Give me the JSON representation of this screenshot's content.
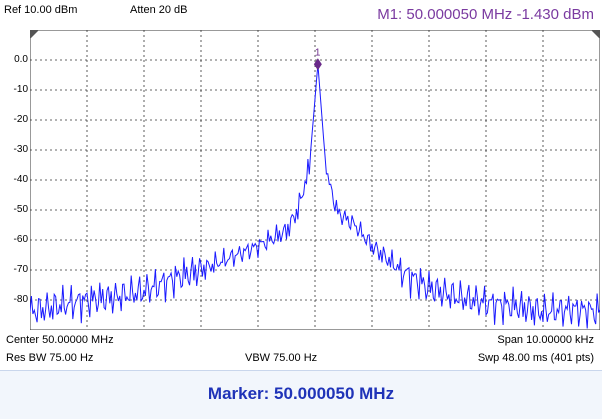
{
  "header": {
    "ref_level": "Ref 10.00 dBm",
    "attenuation": "Atten 20 dB",
    "marker_readout": "M1:  50.000050 MHz  -1.430 dBm"
  },
  "marker_label": "1",
  "footer": {
    "center": "Center 50.00000 MHz",
    "span": "Span 10.00000 kHz",
    "rbw": "Res BW 75.00  Hz",
    "vbw": "VBW 75.00  Hz",
    "sweep": "Swp 48.00 ms (401 pts)"
  },
  "softkey": {
    "text": "Marker:  50.000050 MHz"
  },
  "colors": {
    "trace": "#1a1aff",
    "grid": "#333333",
    "marker": "#6a2a8a",
    "marker_readout": "#7a3aa0",
    "softkey_text": "#1f33b8"
  },
  "chart_data": {
    "type": "line",
    "x_range_hz": [
      49995000,
      50005000
    ],
    "ylim": [
      -90,
      10
    ],
    "ytick_labels": [
      "0.0",
      "-10",
      "-20",
      "-30",
      "-40",
      "-50",
      "-60",
      "-70",
      "-80"
    ],
    "ytick_values": [
      0,
      -10,
      -20,
      -30,
      -40,
      -50,
      -60,
      -70,
      -80
    ],
    "grid": true,
    "series": [
      {
        "x_mhz": [
          49.995,
          49.9955,
          49.996,
          49.9965,
          49.997,
          49.9975,
          49.998,
          49.9985,
          49.999,
          49.9995,
          49.9997,
          49.9999,
          50.00005,
          50.0002,
          50.0004,
          50.0007,
          50.001,
          50.0015,
          50.002,
          50.0025,
          50.003,
          50.0035,
          50.004,
          50.0045,
          50.005
        ],
        "values": [
          -84,
          -82,
          -80,
          -79,
          -77,
          -73,
          -70,
          -66,
          -62,
          -57,
          -50,
          -36,
          -1.43,
          -38,
          -51,
          -55,
          -62,
          -70,
          -76,
          -79,
          -81,
          -82,
          -84,
          -83,
          -84
        ]
      }
    ],
    "marker": {
      "label": "1",
      "x_mhz": 50.00005,
      "y": -1.43
    }
  }
}
